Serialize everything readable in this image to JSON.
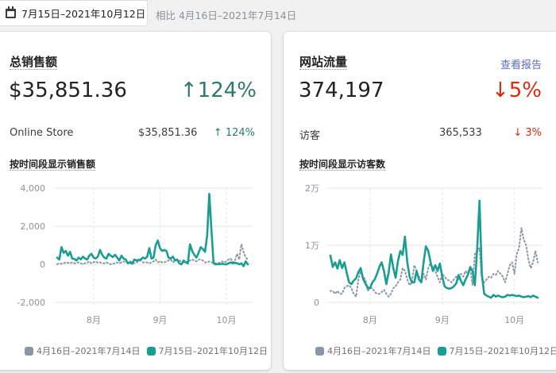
{
  "header": {
    "date_range": "7月15日–2021年10月12日",
    "compare_label": "相比 4月16日–2021年7月14日",
    "calendar_icon": "calendar-icon"
  },
  "sales_card": {
    "title": "总销售额",
    "total": "$35,851.36",
    "change": "↑124%",
    "change_direction": "up",
    "breakdown": [
      {
        "label": "Online Store",
        "value": "$35,851.36",
        "change": "↑ 124%"
      }
    ],
    "chart_title": "按时间段显示销售额",
    "legend": [
      {
        "label": "4月16日–2021年7月14日",
        "color": "#8c95a3"
      },
      {
        "label": "7月15日–2021年10月12日",
        "color": "#1a9d92"
      }
    ]
  },
  "traffic_card": {
    "title": "网站流量",
    "link": "查看报告",
    "total": "374,197",
    "change": "↓5%",
    "change_direction": "down",
    "breakdown": [
      {
        "label": "访客",
        "value": "365,533",
        "change": "↓ 3%"
      }
    ],
    "chart_title": "按时间段显示访客数",
    "legend": [
      {
        "label": "4月16日–2021年7月14日",
        "color": "#8c95a3"
      },
      {
        "label": "7月15日–2021年10月12日",
        "color": "#1a9d92"
      }
    ]
  },
  "colors": {
    "current_series": "#1a9d92",
    "previous_series": "#8c95a3",
    "up": "#2c7a6b",
    "down": "#d72c0d",
    "link": "#5c6ac4"
  },
  "chart_data": [
    {
      "type": "line",
      "title": "按时间段显示销售额",
      "xlabel": "",
      "ylabel": "",
      "x_ticks": [
        "8月",
        "9月",
        "10月"
      ],
      "x_tick_index": [
        17,
        48,
        79
      ],
      "y_ticks": [
        "4,000",
        "2,000",
        "0",
        "-2,000"
      ],
      "y_tick_values": [
        4000,
        2000,
        0,
        -2000
      ],
      "ylim": [
        -2000,
        4000
      ],
      "grid": true,
      "legend_position": "bottom",
      "series": [
        {
          "name": "7月15日–2021年10月12日",
          "style": "solid",
          "color": "#1a9d92",
          "values": [
            350,
            250,
            900,
            600,
            700,
            450,
            650,
            300,
            280,
            200,
            350,
            260,
            400,
            300,
            250,
            450,
            550,
            350,
            300,
            400,
            750,
            500,
            350,
            300,
            550,
            450,
            380,
            500,
            350,
            200,
            450,
            300,
            250,
            50,
            100,
            30,
            250,
            200,
            230,
            250,
            350,
            300,
            400,
            850,
            300,
            350,
            1000,
            1250,
            850,
            700,
            750,
            700,
            350,
            300,
            400,
            200,
            250,
            50,
            0,
            200,
            100,
            50,
            1050,
            700,
            500,
            350,
            600,
            900,
            800,
            650,
            1500,
            3700,
            1800,
            50,
            0,
            0,
            0,
            30,
            0,
            0,
            50,
            100,
            50,
            80,
            50,
            0,
            50,
            -100,
            150,
            0
          ]
        },
        {
          "name": "4月16日–2021年7月14日",
          "style": "dotted",
          "color": "#8c95a3",
          "values": [
            0,
            50,
            30,
            50,
            100,
            80,
            50,
            100,
            50,
            80,
            100,
            50,
            0,
            60,
            80,
            150,
            50,
            100,
            150,
            80,
            100,
            60,
            50,
            100,
            50,
            0,
            30,
            50,
            100,
            60,
            100,
            150,
            100,
            100,
            150,
            100,
            60,
            100,
            150,
            200,
            100,
            100,
            100,
            50,
            100,
            150,
            250,
            100,
            150,
            100,
            100,
            150,
            200,
            250,
            100,
            200,
            250,
            200,
            150,
            100,
            100,
            150,
            200,
            250,
            200,
            150,
            250,
            250,
            200,
            100,
            100,
            150,
            100,
            100,
            50,
            50,
            100,
            150,
            100,
            150,
            250,
            300,
            100,
            200,
            550,
            250,
            1050,
            650,
            350,
            250
          ]
        }
      ]
    },
    {
      "type": "line",
      "title": "按时间段显示访客数",
      "xlabel": "",
      "ylabel": "",
      "x_ticks": [
        "8月",
        "9月",
        "10月"
      ],
      "x_tick_index": [
        17,
        48,
        79
      ],
      "y_ticks": [
        "2万",
        "1万",
        "0"
      ],
      "y_tick_values": [
        20000,
        10000,
        0
      ],
      "ylim": [
        0,
        20000
      ],
      "grid": true,
      "legend_position": "bottom",
      "series": [
        {
          "name": "7月15日–2021年10月12日",
          "style": "solid",
          "color": "#1a9d92",
          "values": [
            8200,
            6200,
            7000,
            5900,
            7400,
            6000,
            7000,
            5200,
            3500,
            3200,
            3800,
            4200,
            5300,
            6000,
            4100,
            3300,
            2600,
            2500,
            3500,
            4000,
            5000,
            6200,
            7000,
            5500,
            3200,
            5200,
            8400,
            6000,
            4300,
            7200,
            9000,
            8300,
            11500,
            7000,
            4500,
            3500,
            3500,
            5500,
            4000,
            3500,
            7000,
            9800,
            9000,
            7000,
            5500,
            6500,
            5500,
            6800,
            4500,
            2800,
            2500,
            2400,
            2500,
            2800,
            3300,
            4800,
            3800,
            3000,
            4000,
            4800,
            6200,
            5500,
            3000,
            9500,
            17800,
            5000,
            1500,
            1200,
            1000,
            800,
            1300,
            1000,
            1200,
            1000,
            900,
            1000,
            1300,
            1200,
            1300,
            1200,
            1100,
            1200,
            1000,
            900,
            1000,
            1100,
            900,
            1200,
            1000,
            800
          ]
        },
        {
          "name": "4月16日–2021年7月14日",
          "style": "dotted",
          "color": "#8c95a3",
          "values": [
            2000,
            2000,
            1500,
            2000,
            1500,
            1500,
            2500,
            2800,
            3000,
            2500,
            1500,
            1000,
            4000,
            5500,
            4500,
            4000,
            2000,
            2500,
            2500,
            1800,
            1500,
            1500,
            1800,
            2200,
            1500,
            1000,
            1500,
            2500,
            2800,
            3500,
            4000,
            6000,
            5500,
            4000,
            3000,
            3500,
            6500,
            5500,
            4500,
            3500,
            5000,
            4000,
            6000,
            7000,
            6000,
            5500,
            4500,
            3500,
            5000,
            4500,
            4000,
            3800,
            3500,
            4000,
            4500,
            4000,
            5000,
            4500,
            5500,
            5000,
            6000,
            3000,
            8500,
            9000,
            9500,
            4000,
            3500,
            4000,
            4500,
            4300,
            5000,
            4800,
            5500,
            5000,
            4500,
            3500,
            5000,
            6500,
            7000,
            5000,
            8500,
            9500,
            13000,
            11000,
            10000,
            7500,
            6000,
            7000,
            9000,
            7000
          ]
        }
      ]
    }
  ]
}
